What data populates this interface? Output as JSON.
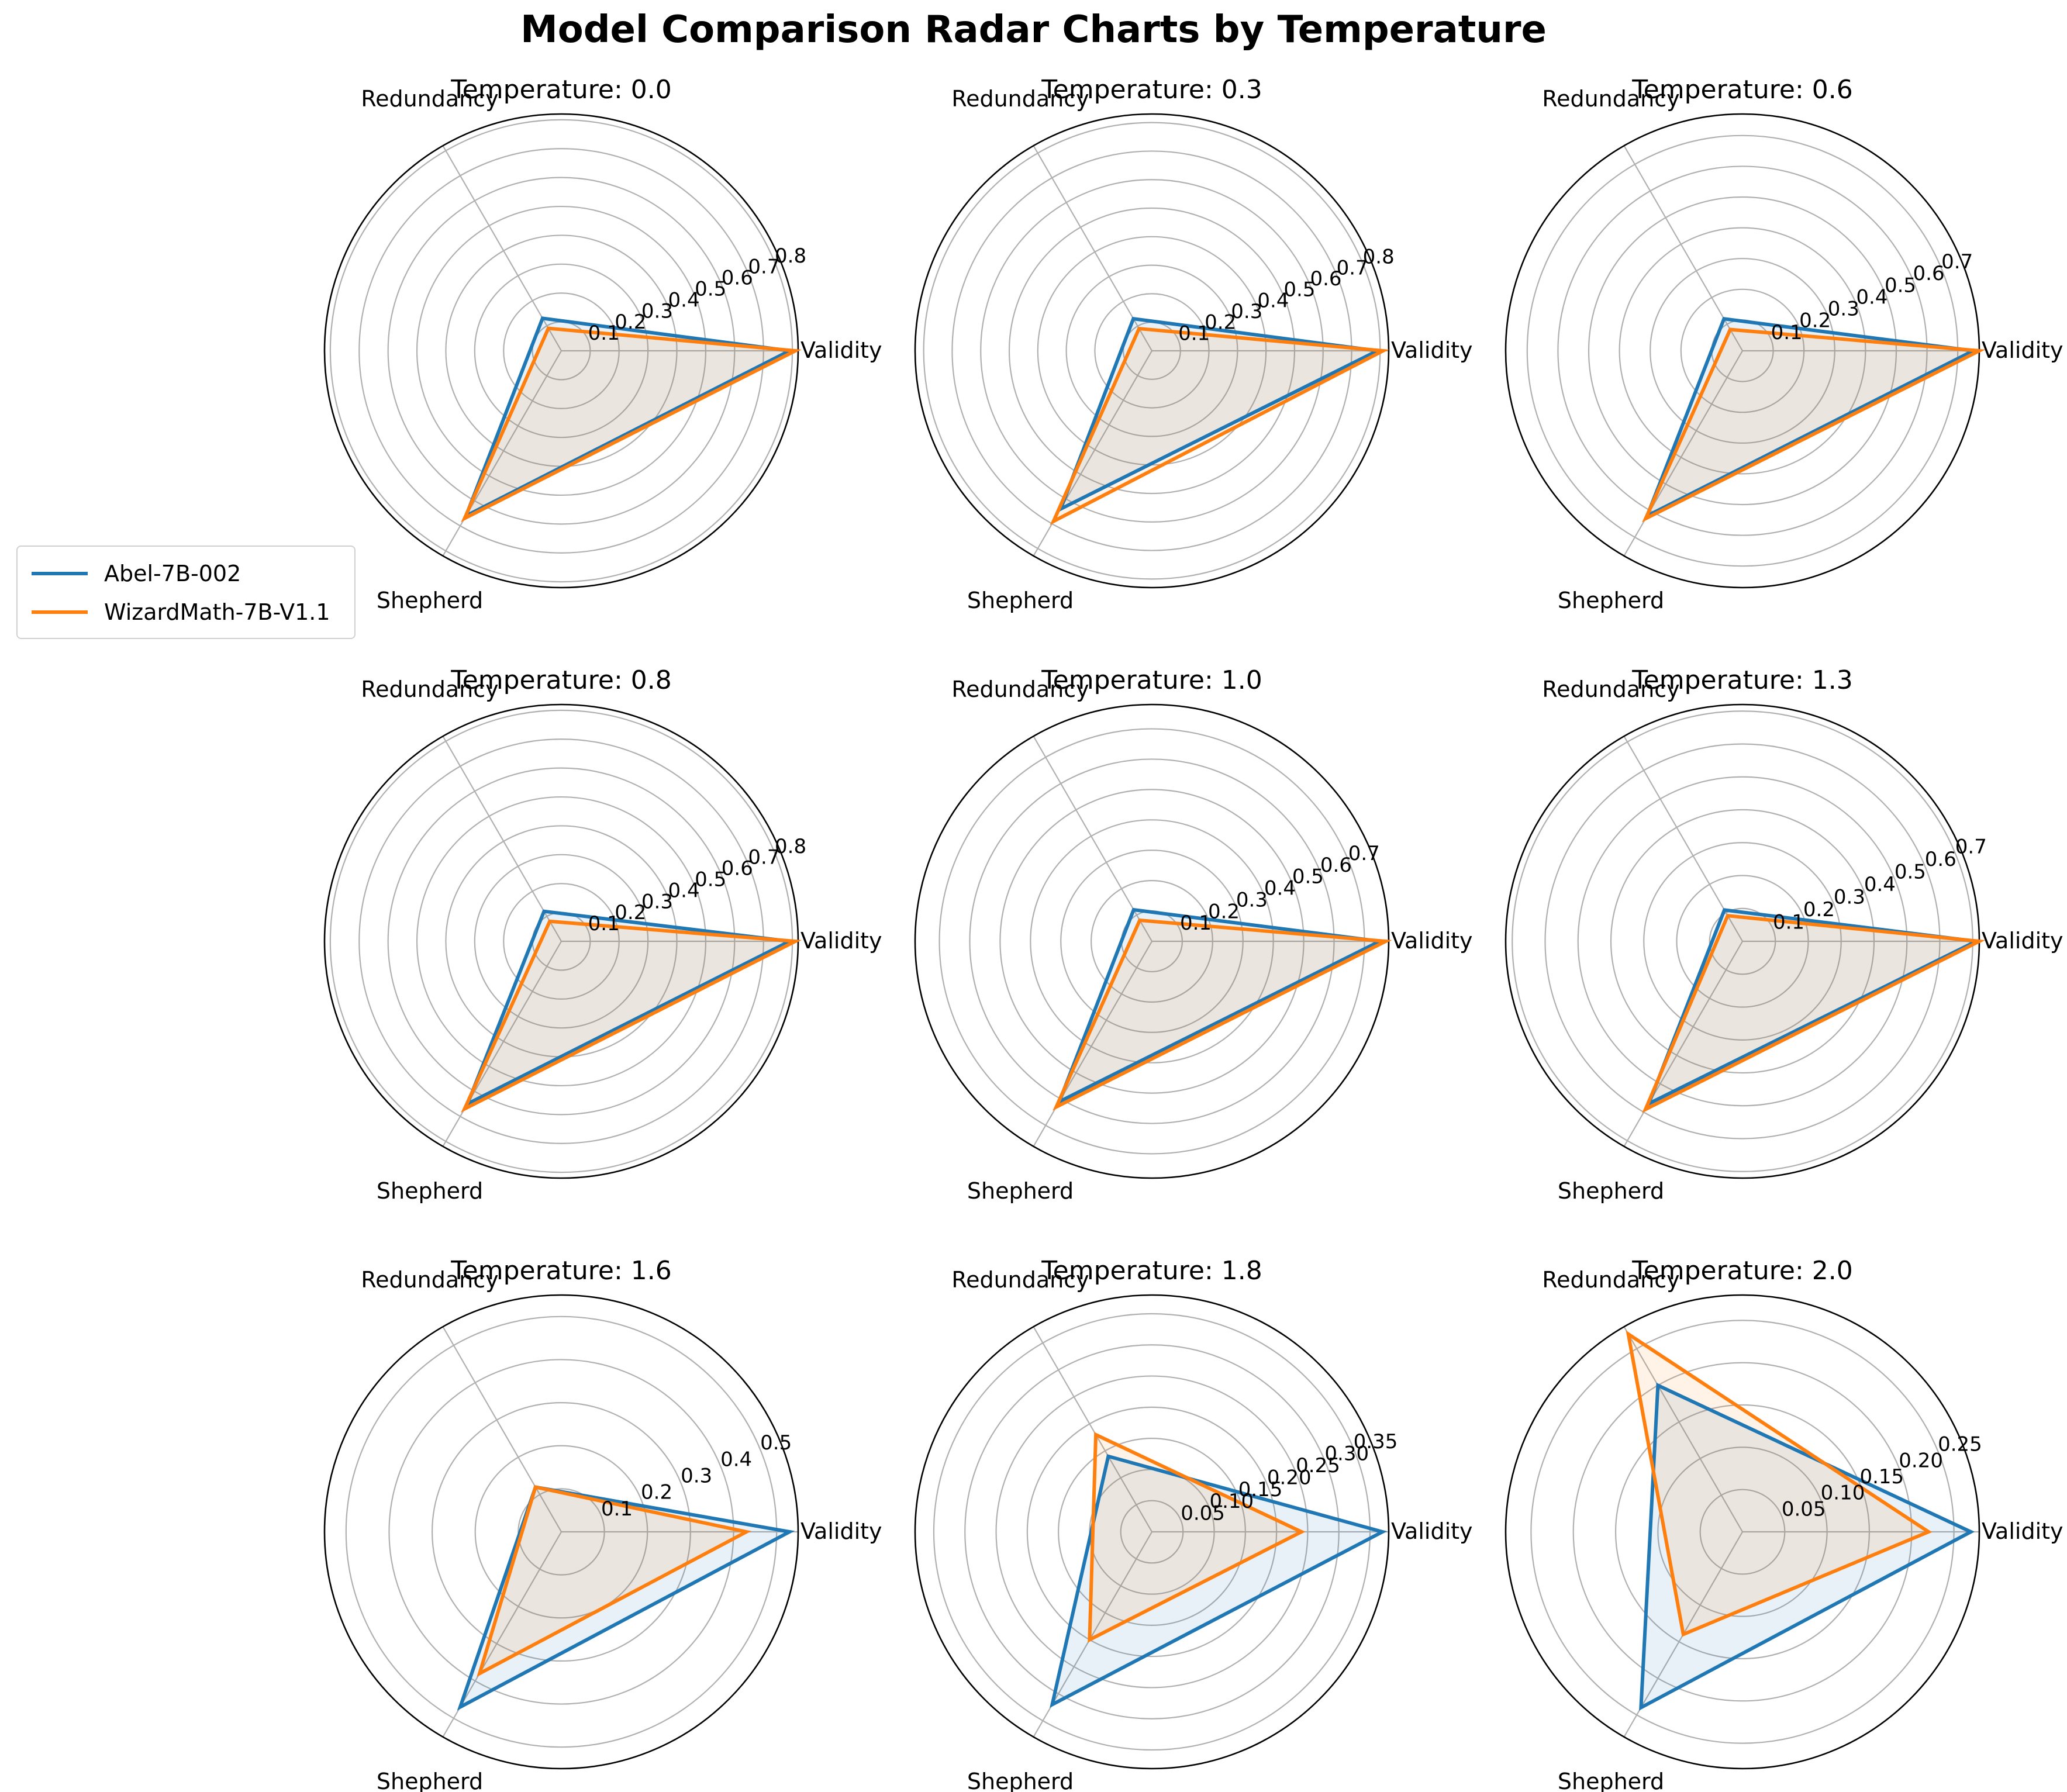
{
  "title": "Model Comparison Radar Charts by Temperature",
  "axes": [
    "Validity",
    "Redundancy",
    "Shepherd"
  ],
  "legend": {
    "items": [
      {
        "name": "Abel-7B-002",
        "color": "#1f77b4"
      },
      {
        "name": "WizardMath-7B-V1.1",
        "color": "#ff7f0e"
      }
    ]
  },
  "chart_data": [
    {
      "type": "radar",
      "title": "Temperature: 0.0",
      "categories": [
        "Validity",
        "Redundancy",
        "Shepherd"
      ],
      "rmax": 0.82,
      "ticks": [
        "0.1",
        "0.2",
        "0.3",
        "0.4",
        "0.5",
        "0.6",
        "0.7",
        "0.8"
      ],
      "tick_values": [
        0.1,
        0.2,
        0.3,
        0.4,
        0.5,
        0.6,
        0.7,
        0.8
      ],
      "series": [
        {
          "name": "Abel-7B-002",
          "values": [
            0.79,
            0.13,
            0.66
          ]
        },
        {
          "name": "WizardMath-7B-V1.1",
          "values": [
            0.81,
            0.09,
            0.67
          ]
        }
      ]
    },
    {
      "type": "radar",
      "title": "Temperature: 0.3",
      "categories": [
        "Validity",
        "Redundancy",
        "Shepherd"
      ],
      "rmax": 0.83,
      "ticks": [
        "0.1",
        "0.2",
        "0.3",
        "0.4",
        "0.5",
        "0.6",
        "0.7",
        "0.8"
      ],
      "tick_values": [
        0.1,
        0.2,
        0.3,
        0.4,
        0.5,
        0.6,
        0.7,
        0.8
      ],
      "series": [
        {
          "name": "Abel-7B-002",
          "values": [
            0.79,
            0.13,
            0.64
          ]
        },
        {
          "name": "WizardMath-7B-V1.1",
          "values": [
            0.81,
            0.09,
            0.69
          ]
        }
      ]
    },
    {
      "type": "radar",
      "title": "Temperature: 0.6",
      "categories": [
        "Validity",
        "Redundancy",
        "Shepherd"
      ],
      "rmax": 0.77,
      "ticks": [
        "0.1",
        "0.2",
        "0.3",
        "0.4",
        "0.5",
        "0.6",
        "0.7"
      ],
      "tick_values": [
        0.1,
        0.2,
        0.3,
        0.4,
        0.5,
        0.6,
        0.7
      ],
      "series": [
        {
          "name": "Abel-7B-002",
          "values": [
            0.75,
            0.12,
            0.62
          ]
        },
        {
          "name": "WizardMath-7B-V1.1",
          "values": [
            0.77,
            0.08,
            0.63
          ]
        }
      ]
    },
    {
      "type": "radar",
      "title": "Temperature: 0.8",
      "categories": [
        "Validity",
        "Redundancy",
        "Shepherd"
      ],
      "rmax": 0.82,
      "ticks": [
        "0.1",
        "0.2",
        "0.3",
        "0.4",
        "0.5",
        "0.6",
        "0.7",
        "0.8"
      ],
      "tick_values": [
        0.1,
        0.2,
        0.3,
        0.4,
        0.5,
        0.6,
        0.7,
        0.8
      ],
      "series": [
        {
          "name": "Abel-7B-002",
          "values": [
            0.79,
            0.12,
            0.65
          ]
        },
        {
          "name": "WizardMath-7B-V1.1",
          "values": [
            0.81,
            0.08,
            0.67
          ]
        }
      ]
    },
    {
      "type": "radar",
      "title": "Temperature: 1.0",
      "categories": [
        "Validity",
        "Redundancy",
        "Shepherd"
      ],
      "rmax": 0.78,
      "ticks": [
        "0.1",
        "0.2",
        "0.3",
        "0.4",
        "0.5",
        "0.6",
        "0.7"
      ],
      "tick_values": [
        0.1,
        0.2,
        0.3,
        0.4,
        0.5,
        0.6,
        0.7
      ],
      "series": [
        {
          "name": "Abel-7B-002",
          "values": [
            0.75,
            0.12,
            0.61
          ]
        },
        {
          "name": "WizardMath-7B-V1.1",
          "values": [
            0.77,
            0.08,
            0.63
          ]
        }
      ]
    },
    {
      "type": "radar",
      "title": "Temperature: 1.3",
      "categories": [
        "Validity",
        "Redundancy",
        "Shepherd"
      ],
      "rmax": 0.72,
      "ticks": [
        "0.1",
        "0.2",
        "0.3",
        "0.4",
        "0.5",
        "0.6",
        "0.7"
      ],
      "tick_values": [
        0.1,
        0.2,
        0.3,
        0.4,
        0.5,
        0.6,
        0.7
      ],
      "series": [
        {
          "name": "Abel-7B-002",
          "values": [
            0.71,
            0.11,
            0.57
          ]
        },
        {
          "name": "WizardMath-7B-V1.1",
          "values": [
            0.72,
            0.09,
            0.59
          ]
        }
      ]
    },
    {
      "type": "radar",
      "title": "Temperature: 1.6",
      "categories": [
        "Validity",
        "Redundancy",
        "Shepherd"
      ],
      "rmax": 0.55,
      "ticks": [
        "0.1",
        "0.2",
        "0.3",
        "0.4",
        "0.5"
      ],
      "tick_values": [
        0.1,
        0.2,
        0.3,
        0.4,
        0.5
      ],
      "series": [
        {
          "name": "Abel-7B-002",
          "values": [
            0.53,
            0.12,
            0.47
          ]
        },
        {
          "name": "WizardMath-7B-V1.1",
          "values": [
            0.43,
            0.12,
            0.38
          ]
        }
      ]
    },
    {
      "type": "radar",
      "title": "Temperature: 1.8",
      "categories": [
        "Validity",
        "Redundancy",
        "Shepherd"
      ],
      "rmax": 0.38,
      "ticks": [
        "0.05",
        "0.10",
        "0.15",
        "0.20",
        "0.25",
        "0.30",
        "0.35"
      ],
      "tick_values": [
        0.05,
        0.1,
        0.15,
        0.2,
        0.25,
        0.3,
        0.35
      ],
      "series": [
        {
          "name": "Abel-7B-002",
          "values": [
            0.37,
            0.14,
            0.32
          ]
        },
        {
          "name": "WizardMath-7B-V1.1",
          "values": [
            0.24,
            0.18,
            0.2
          ]
        }
      ]
    },
    {
      "type": "radar",
      "title": "Temperature: 2.0",
      "categories": [
        "Validity",
        "Redundancy",
        "Shepherd"
      ],
      "rmax": 0.28,
      "ticks": [
        "0.05",
        "0.10",
        "0.15",
        "0.20",
        "0.25"
      ],
      "tick_values": [
        0.05,
        0.1,
        0.15,
        0.2,
        0.25
      ],
      "series": [
        {
          "name": "Abel-7B-002",
          "values": [
            0.27,
            0.2,
            0.24
          ]
        },
        {
          "name": "WizardMath-7B-V1.1",
          "values": [
            0.22,
            0.27,
            0.14
          ]
        }
      ]
    }
  ]
}
